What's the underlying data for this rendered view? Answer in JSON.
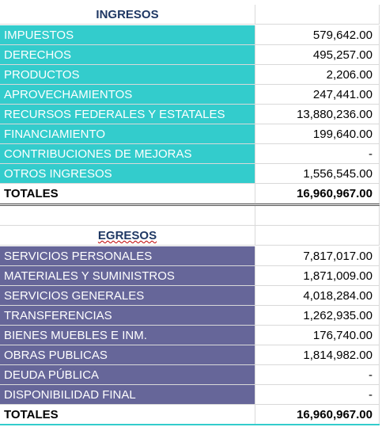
{
  "ingresos": {
    "title": "INGRESOS",
    "rows": [
      [
        "IMPUESTOS",
        "579,642.00"
      ],
      [
        "DERECHOS",
        "495,257.00"
      ],
      [
        "PRODUCTOS",
        "2,206.00"
      ],
      [
        "APROVECHAMIENTOS",
        "247,441.00"
      ],
      [
        "RECURSOS FEDERALES Y ESTATALES",
        "13,880,236.00"
      ],
      [
        "FINANCIAMIENTO",
        "199,640.00"
      ],
      [
        "CONTRIBUCIONES DE MEJORAS",
        "-"
      ],
      [
        "OTROS INGRESOS",
        "1,556,545.00"
      ]
    ],
    "total": [
      "TOTALES",
      "16,960,967.00"
    ]
  },
  "egresos": {
    "title": "EGRESOS",
    "rows": [
      [
        "SERVICIOS PERSONALES",
        "7,817,017.00"
      ],
      [
        "MATERIALES Y SUMINISTROS",
        "1,871,009.00"
      ],
      [
        "SERVICIOS GENERALES",
        "4,018,284.00"
      ],
      [
        "TRANSFERENCIAS",
        "1,262,935.00"
      ],
      [
        "BIENES MUEBLES E INM.",
        "176,740.00"
      ],
      [
        "OBRAS PUBLICAS",
        "1,814,982.00"
      ],
      [
        "DEUDA PÚBLICA",
        "-"
      ],
      [
        "DISPONIBILIDAD FINAL",
        "-"
      ]
    ],
    "total": [
      "TOTALES",
      "16,960,967.00"
    ]
  }
}
